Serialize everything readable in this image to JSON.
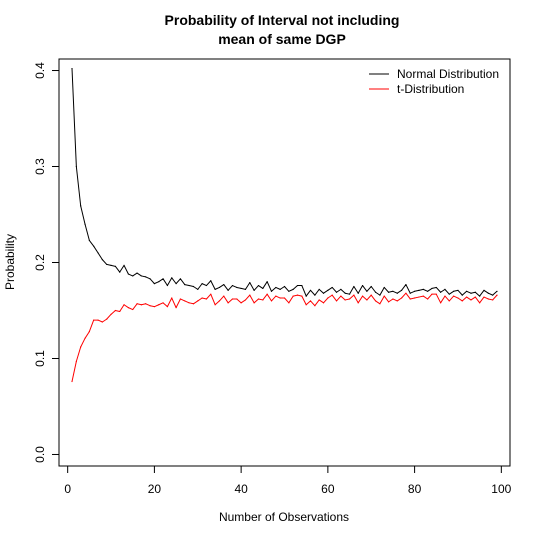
{
  "chart_data": {
    "type": "line",
    "title_lines": [
      "Probability of Interval not including",
      "mean of same DGP"
    ],
    "xlabel": "Number of Observations",
    "ylabel": "Probability",
    "xlim": [
      -2,
      102
    ],
    "ylim": [
      -0.012,
      0.412
    ],
    "xticks": [
      0,
      20,
      40,
      60,
      80,
      100
    ],
    "yticks": [
      0.0,
      0.1,
      0.2,
      0.3,
      0.4
    ],
    "ytick_labels": [
      "0.0",
      "0.1",
      "0.2",
      "0.3",
      "0.4"
    ],
    "legend_position": "top-right",
    "x": [
      1,
      2,
      3,
      4,
      5,
      6,
      7,
      8,
      9,
      10,
      11,
      12,
      13,
      14,
      15,
      16,
      17,
      18,
      19,
      20,
      21,
      22,
      23,
      24,
      25,
      26,
      27,
      28,
      29,
      30,
      31,
      32,
      33,
      34,
      35,
      36,
      37,
      38,
      39,
      40,
      41,
      42,
      43,
      44,
      45,
      46,
      47,
      48,
      49,
      50,
      51,
      52,
      53,
      54,
      55,
      56,
      57,
      58,
      59,
      60,
      61,
      62,
      63,
      64,
      65,
      66,
      67,
      68,
      69,
      70,
      71,
      72,
      73,
      74,
      75,
      76,
      77,
      78,
      79,
      80,
      81,
      82,
      83,
      84,
      85,
      86,
      87,
      88,
      89,
      90,
      91,
      92,
      93,
      94,
      95,
      96,
      97,
      98,
      99
    ],
    "series": [
      {
        "name": "Normal Distribution",
        "color": "#000000",
        "values": [
          0.402,
          0.3,
          0.259,
          0.24,
          0.223,
          0.217,
          0.21,
          0.203,
          0.198,
          0.197,
          0.196,
          0.19,
          0.197,
          0.188,
          0.186,
          0.189,
          0.186,
          0.185,
          0.183,
          0.178,
          0.18,
          0.183,
          0.176,
          0.184,
          0.178,
          0.183,
          0.177,
          0.176,
          0.175,
          0.172,
          0.178,
          0.176,
          0.181,
          0.172,
          0.174,
          0.177,
          0.171,
          0.176,
          0.174,
          0.173,
          0.172,
          0.179,
          0.171,
          0.176,
          0.173,
          0.18,
          0.17,
          0.174,
          0.172,
          0.175,
          0.17,
          0.172,
          0.176,
          0.176,
          0.165,
          0.171,
          0.166,
          0.172,
          0.168,
          0.171,
          0.174,
          0.169,
          0.172,
          0.168,
          0.167,
          0.175,
          0.168,
          0.176,
          0.17,
          0.175,
          0.169,
          0.166,
          0.174,
          0.169,
          0.17,
          0.168,
          0.171,
          0.177,
          0.168,
          0.17,
          0.171,
          0.172,
          0.17,
          0.173,
          0.174,
          0.169,
          0.172,
          0.167,
          0.17,
          0.171,
          0.166,
          0.17,
          0.168,
          0.169,
          0.165,
          0.171,
          0.168,
          0.166,
          0.17
        ]
      },
      {
        "name": "t-Distribution",
        "color": "#ff0000",
        "values": [
          0.076,
          0.097,
          0.112,
          0.121,
          0.128,
          0.14,
          0.14,
          0.138,
          0.141,
          0.146,
          0.15,
          0.149,
          0.156,
          0.153,
          0.151,
          0.157,
          0.156,
          0.157,
          0.155,
          0.154,
          0.156,
          0.158,
          0.154,
          0.163,
          0.153,
          0.162,
          0.16,
          0.158,
          0.157,
          0.16,
          0.163,
          0.162,
          0.167,
          0.156,
          0.16,
          0.165,
          0.158,
          0.162,
          0.162,
          0.158,
          0.161,
          0.166,
          0.158,
          0.162,
          0.161,
          0.167,
          0.16,
          0.165,
          0.163,
          0.163,
          0.158,
          0.165,
          0.166,
          0.165,
          0.156,
          0.16,
          0.155,
          0.161,
          0.158,
          0.163,
          0.166,
          0.16,
          0.165,
          0.161,
          0.162,
          0.166,
          0.158,
          0.165,
          0.161,
          0.166,
          0.16,
          0.157,
          0.165,
          0.159,
          0.162,
          0.16,
          0.163,
          0.168,
          0.162,
          0.163,
          0.164,
          0.165,
          0.162,
          0.167,
          0.167,
          0.158,
          0.165,
          0.16,
          0.165,
          0.163,
          0.16,
          0.164,
          0.161,
          0.164,
          0.158,
          0.164,
          0.162,
          0.161,
          0.166
        ]
      }
    ]
  }
}
